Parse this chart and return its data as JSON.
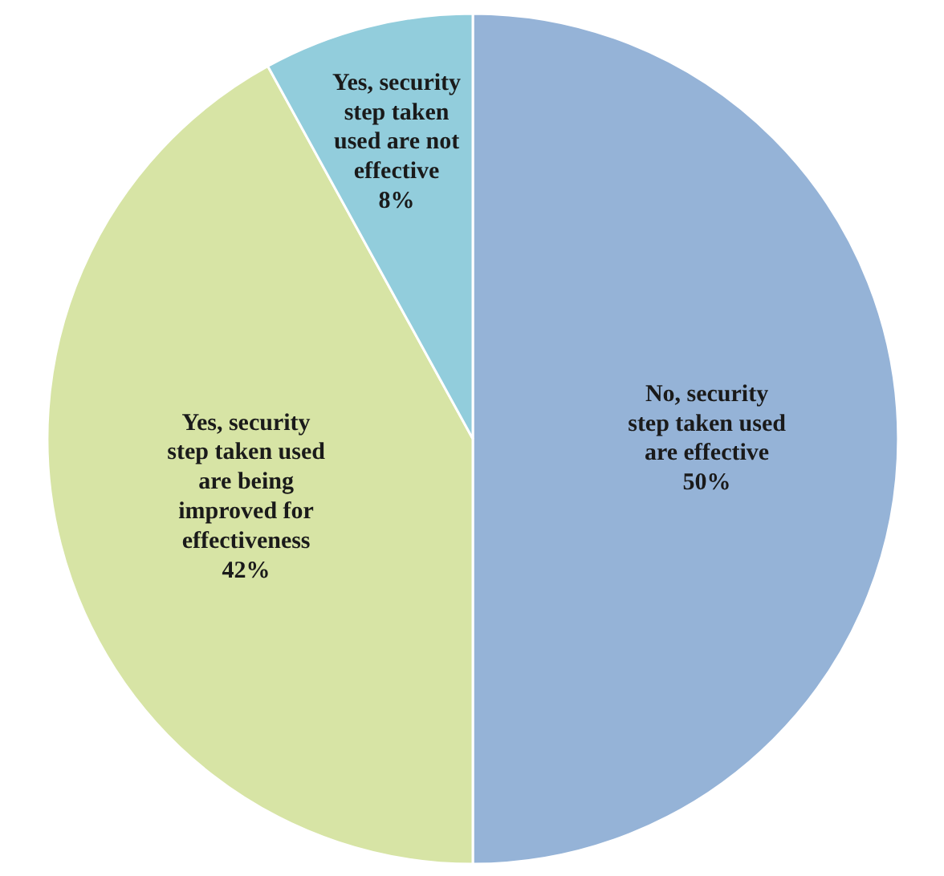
{
  "chart_data": {
    "type": "pie",
    "categories": [
      "No, security step taken used are effective",
      "Yes, security step taken used are being improved for effectiveness",
      "Yes, security step taken used are not effective"
    ],
    "values": [
      50,
      42,
      8
    ],
    "colors": [
      "#95b3d7",
      "#d7e4a5",
      "#92cddc"
    ],
    "value_labels": [
      "50%",
      "42%",
      "8%"
    ]
  }
}
